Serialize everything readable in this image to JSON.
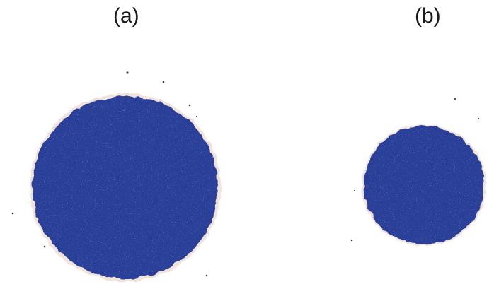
{
  "panels": [
    {
      "label": "(a)",
      "cluster_color": "#2c3f98",
      "cluster_highlight": "#6f7fc8"
    },
    {
      "label": "(b)",
      "cluster_color": "#2c3f98",
      "cluster_highlight": "#6f7fc8"
    }
  ],
  "colors": {
    "background": "#ffffff",
    "halo": "#f2e2dc",
    "particle": "#2c3f98",
    "stray_particle": "#3a3a5a"
  }
}
